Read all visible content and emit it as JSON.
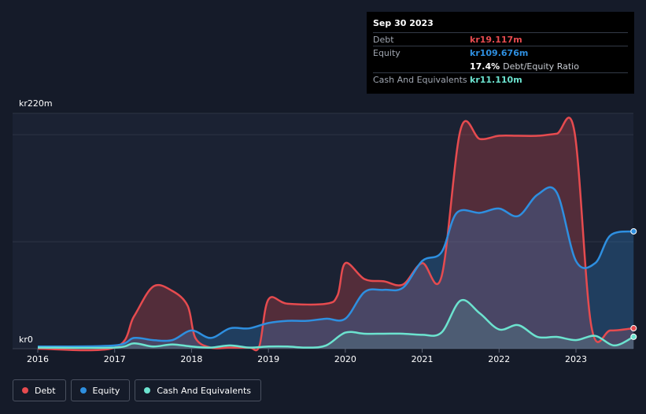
{
  "tooltip": {
    "date": "Sep 30 2023",
    "debt_label": "Debt",
    "debt_value": "kr19.117m",
    "equity_label": "Equity",
    "equity_value": "kr109.676m",
    "ratio_value": "17.4%",
    "ratio_label": "Debt/Equity Ratio",
    "cash_label": "Cash And Equivalents",
    "cash_value": "kr11.110m"
  },
  "legend": [
    {
      "label": "Debt",
      "color": "#e64b4f"
    },
    {
      "label": "Equity",
      "color": "#2e8fe0"
    },
    {
      "label": "Cash And Equivalents",
      "color": "#6ce3cf"
    }
  ],
  "chart_data": {
    "type": "area",
    "title": "",
    "xlabel": "",
    "ylabel": "",
    "xlim": [
      2016,
      2023.75
    ],
    "ylim": [
      0,
      220
    ],
    "y_top_label": "kr220m",
    "y_bottom_label": "kr0",
    "x_ticks": [
      2016,
      2017,
      2018,
      2019,
      2020,
      2021,
      2022,
      2023
    ],
    "x_tick_labels": [
      "2016",
      "2017",
      "2018",
      "2019",
      "2020",
      "2021",
      "2022",
      "2023"
    ],
    "series": [
      {
        "name": "Debt",
        "color": "#e64b4f",
        "x": [
          2016.0,
          2017.0,
          2017.25,
          2017.5,
          2017.75,
          2017.95,
          2018.05,
          2018.25,
          2018.5,
          2018.75,
          2018.88,
          2019.0,
          2019.25,
          2019.75,
          2019.9,
          2020.0,
          2020.25,
          2020.5,
          2020.75,
          2021.0,
          2021.25,
          2021.5,
          2021.75,
          2022.0,
          2022.25,
          2022.5,
          2022.75,
          2022.98,
          2023.2,
          2023.45,
          2023.75
        ],
        "values": [
          0,
          1,
          30,
          58,
          54,
          40,
          10,
          1,
          1,
          1,
          2,
          46,
          42,
          42,
          50,
          80,
          65,
          63,
          60,
          80,
          67,
          205,
          196,
          199,
          199,
          199,
          201,
          203,
          21,
          17,
          19.117
        ]
      },
      {
        "name": "Equity",
        "color": "#2e8fe0",
        "x": [
          2016.0,
          2017.0,
          2017.25,
          2017.5,
          2017.75,
          2018.0,
          2018.25,
          2018.5,
          2018.75,
          2019.0,
          2019.25,
          2019.5,
          2019.75,
          2020.0,
          2020.25,
          2020.5,
          2020.75,
          2021.0,
          2021.25,
          2021.45,
          2021.75,
          2022.0,
          2022.25,
          2022.5,
          2022.75,
          2023.0,
          2023.25,
          2023.45,
          2023.75
        ],
        "values": [
          2,
          3,
          10,
          8,
          8,
          17,
          10,
          19,
          19,
          24,
          26,
          26,
          28,
          28,
          53,
          55,
          57,
          82,
          90,
          127,
          127,
          131,
          124,
          144,
          146,
          82,
          80,
          106,
          109.676
        ]
      },
      {
        "name": "Cash And Equivalents",
        "color": "#6ce3cf",
        "x": [
          2016.0,
          2017.0,
          2017.25,
          2017.5,
          2017.75,
          2018.0,
          2018.25,
          2018.5,
          2018.75,
          2019.0,
          2019.25,
          2019.5,
          2019.75,
          2020.0,
          2020.25,
          2020.5,
          2020.75,
          2021.0,
          2021.25,
          2021.5,
          2021.75,
          2022.0,
          2022.25,
          2022.5,
          2022.75,
          2023.0,
          2023.25,
          2023.5,
          2023.75
        ],
        "values": [
          1,
          1,
          5,
          2,
          4,
          2,
          1,
          3,
          1,
          2,
          2,
          1,
          3,
          15,
          14,
          14,
          14,
          13,
          15,
          45,
          33,
          18,
          22,
          11,
          11,
          8,
          12,
          3,
          11.11
        ]
      }
    ]
  }
}
